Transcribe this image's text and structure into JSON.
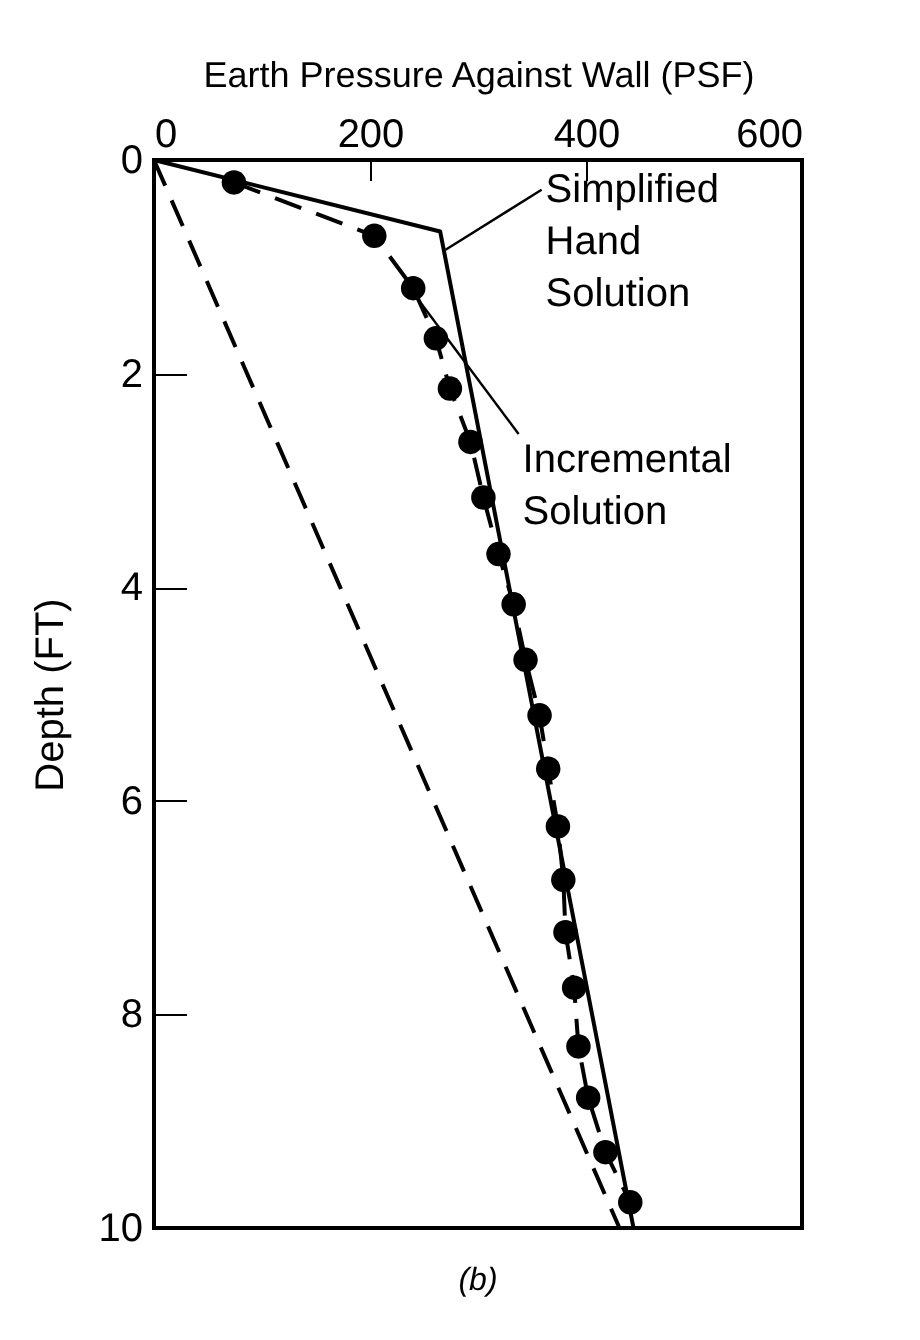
{
  "chart_data": {
    "type": "line",
    "xlabel": "Earth Pressure Against Wall (PSF)",
    "ylabel": "Depth (FT)",
    "xlim": [
      0,
      600
    ],
    "xticks": [
      0,
      200,
      400,
      600
    ],
    "ylim": [
      10,
      0
    ],
    "yticks": [
      0,
      2,
      4,
      6,
      8,
      10
    ],
    "grid": false,
    "series": [
      {
        "color": "#000000",
        "line_style": "solid",
        "marker": "none",
        "x": [
          0,
          265,
          444
        ],
        "values": [
          0,
          0.67,
          10
        ]
      },
      {
        "color": "#000000",
        "line_style": "dashed",
        "marker": "circle",
        "x": [
          74,
          204,
          240,
          261,
          274,
          293,
          305,
          319,
          333,
          344,
          357,
          365,
          374,
          379,
          381,
          389,
          393,
          402,
          418,
          441
        ],
        "values": [
          0.21,
          0.71,
          1.2,
          1.67,
          2.14,
          2.64,
          3.16,
          3.69,
          4.16,
          4.68,
          5.2,
          5.7,
          6.24,
          6.74,
          7.23,
          7.75,
          8.3,
          8.78,
          9.29,
          9.76
        ]
      },
      {
        "color": "#000000",
        "line_style": "dashed",
        "marker": "none",
        "x": [
          0,
          431
        ],
        "values": [
          0,
          10
        ]
      }
    ],
    "annotations": [
      {
        "text": "Simplified\nHand\nSolution",
        "x": 270,
        "y": 0.84
      },
      {
        "text": "Incremental\nSolution",
        "x": 245,
        "y": 1.31
      },
      "(b)"
    ]
  }
}
